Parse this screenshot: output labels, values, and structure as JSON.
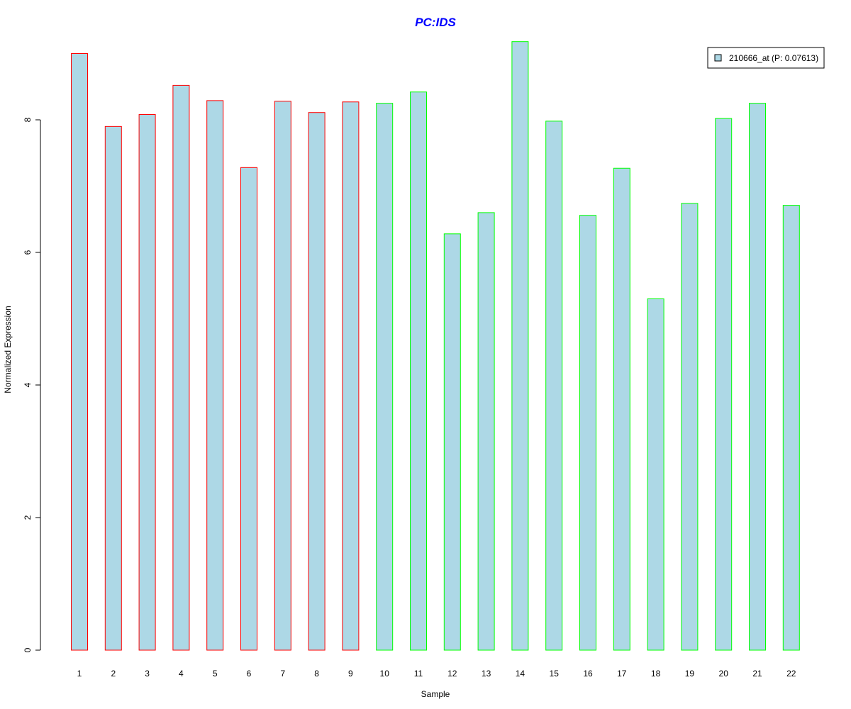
{
  "chart_data": {
    "type": "bar",
    "title": "PC:IDS",
    "xlabel": "Sample",
    "ylabel": "Normalized Expression",
    "categories": [
      "1",
      "2",
      "3",
      "4",
      "5",
      "6",
      "7",
      "8",
      "9",
      "10",
      "11",
      "12",
      "13",
      "14",
      "15",
      "16",
      "17",
      "18",
      "19",
      "20",
      "21",
      "22"
    ],
    "series": [
      {
        "name": "210666_at (P: 0.07613)",
        "values": [
          9.0,
          7.9,
          8.08,
          8.52,
          8.29,
          7.28,
          8.28,
          8.11,
          8.27,
          8.25,
          8.42,
          6.28,
          6.6,
          9.18,
          7.98,
          6.56,
          7.27,
          5.3,
          6.74,
          8.02,
          8.25,
          6.71
        ]
      }
    ],
    "group_border": [
      "red",
      "red",
      "red",
      "red",
      "red",
      "red",
      "red",
      "red",
      "red",
      "green",
      "green",
      "green",
      "green",
      "green",
      "green",
      "green",
      "green",
      "green",
      "green",
      "green",
      "green",
      "green"
    ],
    "yticks": [
      0,
      2,
      4,
      6,
      8
    ],
    "ylim": [
      0,
      9.5
    ],
    "legend_position": "top-right",
    "grid": false,
    "colors": {
      "bar_fill": "#add8e6",
      "border_red": "#ff0000",
      "border_green": "#00ff00",
      "title": "#0000ff"
    }
  }
}
